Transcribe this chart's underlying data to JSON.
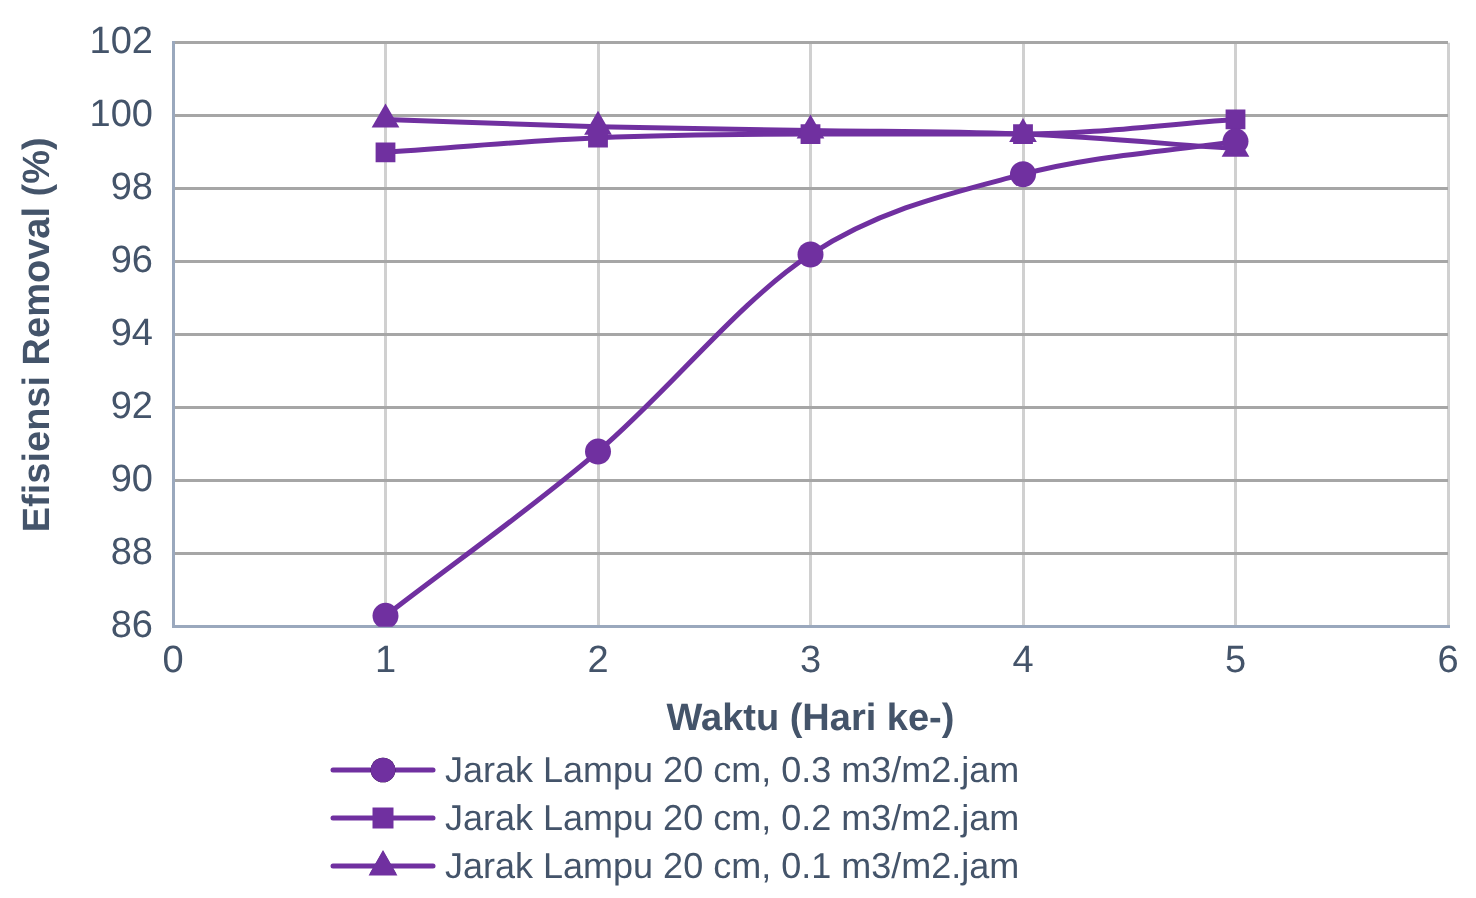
{
  "chart_data": {
    "type": "line",
    "xlabel": "Waktu (Hari ke-)",
    "ylabel": "Efisiensi Removal (%)",
    "x": [
      1,
      2,
      3,
      4,
      5
    ],
    "series": [
      {
        "name": "Jarak Lampu 20 cm, 0.3 m3/m2.jam",
        "color": "#7030a0",
        "marker": "circle",
        "values": [
          86.3,
          90.8,
          96.2,
          98.4,
          99.3
        ]
      },
      {
        "name": "Jarak Lampu 20 cm, 0.2 m3/m2.jam",
        "color": "#7030a0",
        "marker": "square",
        "values": [
          99.0,
          99.4,
          99.5,
          99.5,
          99.9
        ]
      },
      {
        "name": "Jarak Lampu 20 cm, 0.1 m3/m2.jam",
        "color": "#7030a0",
        "marker": "triangle",
        "values": [
          99.9,
          99.7,
          99.6,
          99.5,
          99.1
        ]
      }
    ],
    "xlim": [
      0,
      6
    ],
    "xticks": [
      0,
      1,
      2,
      3,
      4,
      5,
      6
    ],
    "ylim": [
      86,
      102
    ],
    "yticks": [
      86,
      88,
      90,
      92,
      94,
      96,
      98,
      100,
      102
    ],
    "grid": true,
    "legend": "bottom",
    "line_style": "solid"
  }
}
